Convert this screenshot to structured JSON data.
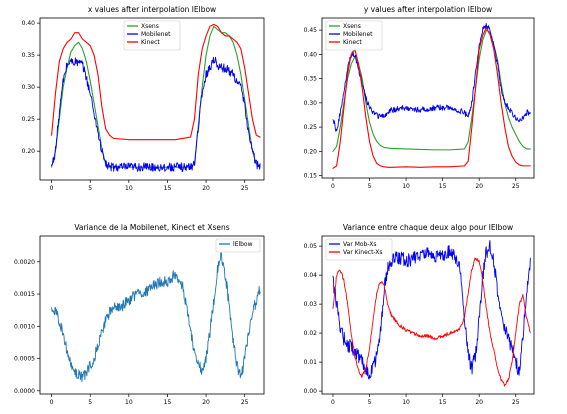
{
  "colors": {
    "green": "#2ca02c",
    "blue": "#0000ff",
    "red": "#ff0000",
    "steel": "#1f77b4"
  },
  "chart_data": [
    {
      "type": "line",
      "title": "x values after interpolation lElbow",
      "xlim": [
        -1.5,
        27.5
      ],
      "ylim": [
        0.155,
        0.408
      ],
      "xticks": [
        0,
        5,
        10,
        15,
        20,
        25
      ],
      "yticks": [
        0.2,
        0.25,
        0.3,
        0.35,
        0.4
      ],
      "ytick_labels": [
        "0.20",
        "0.25",
        "0.30",
        "0.35",
        "0.40"
      ],
      "legend": "top-center",
      "series": [
        {
          "name": "Xsens",
          "color": "#2ca02c",
          "x": [
            0,
            0.5,
            1,
            1.5,
            2,
            2.5,
            3,
            3.5,
            4,
            4.5,
            5,
            5.5,
            6,
            6.5,
            7,
            7.5,
            8,
            10,
            12,
            14,
            16,
            18,
            18.5,
            19,
            19.5,
            20,
            20.5,
            21,
            21.5,
            22,
            22.5,
            23,
            23.5,
            24,
            24.5,
            25,
            25.5,
            26,
            26.5,
            27
          ],
          "y": [
            0.175,
            0.2,
            0.25,
            0.3,
            0.33,
            0.355,
            0.365,
            0.37,
            0.36,
            0.34,
            0.31,
            0.275,
            0.24,
            0.205,
            0.18,
            0.175,
            0.175,
            0.175,
            0.175,
            0.175,
            0.175,
            0.175,
            0.18,
            0.24,
            0.3,
            0.35,
            0.38,
            0.395,
            0.39,
            0.385,
            0.385,
            0.38,
            0.37,
            0.35,
            0.32,
            0.28,
            0.24,
            0.2,
            0.18,
            0.175
          ]
        },
        {
          "name": "Mobilenet",
          "color": "#0000ff",
          "noise": 0.007,
          "x": [
            0,
            0.5,
            1,
            1.5,
            2,
            2.5,
            3,
            3.5,
            4,
            4.5,
            5,
            5.5,
            6,
            6.5,
            7,
            7.5,
            8,
            10,
            12,
            14,
            16,
            18,
            18.5,
            19,
            19.5,
            20,
            20.5,
            21,
            21.5,
            22,
            22.5,
            23,
            23.5,
            24,
            24.5,
            25,
            25.5,
            26,
            26.5,
            27
          ],
          "y": [
            0.175,
            0.2,
            0.26,
            0.31,
            0.335,
            0.34,
            0.34,
            0.338,
            0.335,
            0.315,
            0.29,
            0.26,
            0.23,
            0.2,
            0.18,
            0.175,
            0.175,
            0.175,
            0.175,
            0.175,
            0.175,
            0.175,
            0.18,
            0.24,
            0.29,
            0.32,
            0.33,
            0.345,
            0.335,
            0.33,
            0.33,
            0.325,
            0.32,
            0.31,
            0.3,
            0.27,
            0.23,
            0.2,
            0.18,
            0.175
          ]
        },
        {
          "name": "Kinect",
          "color": "#ff0000",
          "x": [
            0,
            0.5,
            1,
            1.5,
            2,
            2.5,
            3,
            3.5,
            4,
            4.5,
            5,
            5.5,
            6,
            6.5,
            7,
            7.5,
            8,
            10,
            12,
            14,
            16,
            18,
            18.5,
            19,
            19.5,
            20,
            20.5,
            21,
            21.5,
            22,
            22.5,
            23,
            23.5,
            24,
            24.5,
            25,
            25.5,
            26,
            26.5,
            27
          ],
          "y": [
            0.225,
            0.29,
            0.34,
            0.36,
            0.37,
            0.375,
            0.385,
            0.385,
            0.375,
            0.37,
            0.365,
            0.35,
            0.32,
            0.27,
            0.235,
            0.225,
            0.22,
            0.218,
            0.218,
            0.218,
            0.218,
            0.222,
            0.25,
            0.32,
            0.36,
            0.38,
            0.395,
            0.398,
            0.395,
            0.385,
            0.38,
            0.38,
            0.375,
            0.37,
            0.36,
            0.33,
            0.29,
            0.25,
            0.225,
            0.222
          ]
        }
      ]
    },
    {
      "type": "line",
      "title": "y values after interpolation lElbow",
      "xlim": [
        -1.5,
        27.5
      ],
      "ylim": [
        0.145,
        0.475
      ],
      "xticks": [
        0,
        5,
        10,
        15,
        20,
        25
      ],
      "yticks": [
        0.15,
        0.2,
        0.25,
        0.3,
        0.35,
        0.4,
        0.45
      ],
      "ytick_labels": [
        "0.15",
        "0.20",
        "0.25",
        "0.30",
        "0.35",
        "0.40",
        "0.45"
      ],
      "legend": "top-left",
      "series": [
        {
          "name": "Xsens",
          "color": "#2ca02c",
          "x": [
            0,
            0.5,
            1,
            1.5,
            2,
            2.5,
            3,
            3.5,
            4,
            4.5,
            5,
            5.5,
            6,
            6.5,
            7,
            7.5,
            8,
            10,
            12,
            14,
            16,
            18,
            18.5,
            19,
            19.5,
            20,
            20.5,
            21,
            21.5,
            22,
            22.5,
            23,
            23.5,
            24,
            24.5,
            25,
            25.5,
            26,
            26.5,
            27
          ],
          "y": [
            0.2,
            0.21,
            0.25,
            0.3,
            0.35,
            0.38,
            0.395,
            0.38,
            0.35,
            0.3,
            0.26,
            0.235,
            0.22,
            0.212,
            0.208,
            0.207,
            0.206,
            0.205,
            0.204,
            0.203,
            0.203,
            0.205,
            0.22,
            0.27,
            0.33,
            0.39,
            0.43,
            0.45,
            0.445,
            0.42,
            0.39,
            0.34,
            0.3,
            0.27,
            0.25,
            0.235,
            0.22,
            0.21,
            0.205,
            0.205
          ]
        },
        {
          "name": "Mobilenet",
          "color": "#0000ff",
          "noise": 0.006,
          "x": [
            0,
            0.5,
            1,
            1.5,
            2,
            2.5,
            3,
            3.5,
            4,
            4.5,
            5,
            5.5,
            6,
            6.5,
            7,
            7.5,
            8,
            10,
            12,
            14,
            16,
            18,
            18.5,
            19,
            19.5,
            20,
            20.5,
            21,
            21.5,
            22,
            22.5,
            23,
            23.5,
            24,
            24.5,
            25,
            25.5,
            26,
            26.5,
            27
          ],
          "y": [
            0.27,
            0.24,
            0.28,
            0.32,
            0.37,
            0.4,
            0.4,
            0.37,
            0.34,
            0.31,
            0.29,
            0.28,
            0.275,
            0.27,
            0.275,
            0.28,
            0.285,
            0.29,
            0.285,
            0.29,
            0.29,
            0.28,
            0.27,
            0.3,
            0.36,
            0.42,
            0.45,
            0.46,
            0.45,
            0.42,
            0.38,
            0.33,
            0.3,
            0.29,
            0.28,
            0.27,
            0.265,
            0.27,
            0.28,
            0.28
          ]
        },
        {
          "name": "Kinect",
          "color": "#ff0000",
          "x": [
            0,
            0.5,
            1,
            1.5,
            2,
            2.5,
            3,
            3.5,
            4,
            4.5,
            5,
            5.5,
            6,
            6.5,
            7,
            7.5,
            8,
            10,
            12,
            14,
            16,
            18,
            18.5,
            19,
            19.5,
            20,
            20.5,
            21,
            21.5,
            22,
            22.5,
            23,
            23.5,
            24,
            24.5,
            25,
            25.5,
            26,
            26.5,
            27
          ],
          "y": [
            0.165,
            0.17,
            0.22,
            0.29,
            0.36,
            0.4,
            0.41,
            0.38,
            0.33,
            0.27,
            0.22,
            0.19,
            0.175,
            0.17,
            0.168,
            0.167,
            0.167,
            0.168,
            0.167,
            0.168,
            0.168,
            0.17,
            0.18,
            0.25,
            0.33,
            0.41,
            0.44,
            0.455,
            0.44,
            0.41,
            0.36,
            0.3,
            0.25,
            0.21,
            0.19,
            0.178,
            0.172,
            0.17,
            0.17,
            0.17
          ]
        }
      ]
    },
    {
      "type": "line",
      "title": "Variance de la Mobilenet, Kinect et Xsens",
      "xlim": [
        -1.5,
        27.5
      ],
      "ylim": [
        -5e-05,
        0.0024
      ],
      "xticks": [
        0,
        5,
        10,
        15,
        20,
        25
      ],
      "yticks": [
        0,
        0.0005,
        0.001,
        0.0015,
        0.002
      ],
      "ytick_labels": [
        "0.0000",
        "0.0005",
        "0.0010",
        "0.0015",
        "0.0020"
      ],
      "legend": "top-right",
      "series": [
        {
          "name": "lElbow",
          "color": "#1f77b4",
          "noise": 9e-05,
          "x": [
            0,
            0.5,
            1,
            1.5,
            2,
            2.5,
            3,
            3.5,
            4,
            4.5,
            5,
            5.5,
            6,
            6.5,
            7,
            7.5,
            8,
            9,
            10,
            11,
            12,
            13,
            14,
            15,
            16,
            17,
            17.5,
            18,
            18.5,
            19,
            19.5,
            20,
            20.5,
            21,
            21.5,
            22,
            22.5,
            23,
            23.5,
            24,
            24.5,
            25,
            25.5,
            26,
            26.5,
            27
          ],
          "y": [
            0.0013,
            0.0012,
            0.0011,
            0.0009,
            0.0006,
            0.0004,
            0.0003,
            0.00025,
            0.0002,
            0.0003,
            0.0004,
            0.0005,
            0.0007,
            0.0009,
            0.0011,
            0.0012,
            0.0013,
            0.0013,
            0.0014,
            0.0015,
            0.0015,
            0.0016,
            0.0017,
            0.0017,
            0.0018,
            0.0016,
            0.0013,
            0.0009,
            0.0006,
            0.0004,
            0.0003,
            0.0005,
            0.0009,
            0.0014,
            0.0019,
            0.0021,
            0.0018,
            0.0013,
            0.0008,
            0.0004,
            0.0002,
            0.0005,
            0.0009,
            0.0012,
            0.0014,
            0.0016
          ]
        }
      ]
    },
    {
      "type": "line",
      "title": "Variance entre chaque deux algo pour lElbow",
      "xlim": [
        -1.5,
        27.5
      ],
      "ylim": [
        -0.001,
        0.0535
      ],
      "xticks": [
        0,
        5,
        10,
        15,
        20,
        25
      ],
      "yticks": [
        0,
        0.01,
        0.02,
        0.03,
        0.04,
        0.05
      ],
      "ytick_labels": [
        "0.00",
        "0.01",
        "0.02",
        "0.03",
        "0.04",
        "0.05"
      ],
      "legend": "top-left",
      "series": [
        {
          "name": "Var Mob-Xs",
          "color": "#0000ff",
          "noise": 0.0025,
          "x": [
            0,
            0.5,
            1,
            1.5,
            2,
            2.5,
            3,
            3.5,
            4,
            4.5,
            5,
            5.5,
            6,
            6.5,
            7,
            7.5,
            8,
            9,
            10,
            11,
            12,
            13,
            14,
            15,
            16,
            17,
            17.5,
            18,
            18.5,
            19,
            19.5,
            20,
            20.5,
            21,
            21.5,
            22,
            22.5,
            23,
            23.5,
            24,
            24.5,
            25,
            25.5,
            26,
            26.5,
            27
          ],
          "y": [
            0.038,
            0.03,
            0.022,
            0.018,
            0.016,
            0.015,
            0.014,
            0.012,
            0.01,
            0.008,
            0.006,
            0.008,
            0.012,
            0.02,
            0.035,
            0.042,
            0.045,
            0.046,
            0.045,
            0.046,
            0.047,
            0.047,
            0.046,
            0.047,
            0.048,
            0.045,
            0.04,
            0.025,
            0.012,
            0.008,
            0.012,
            0.025,
            0.04,
            0.048,
            0.05,
            0.045,
            0.035,
            0.028,
            0.022,
            0.018,
            0.015,
            0.01,
            0.006,
            0.02,
            0.035,
            0.045
          ]
        },
        {
          "name": "Var Kinect-Xs",
          "color": "#ff0000",
          "noise": 0.0006,
          "x": [
            0,
            0.5,
            1,
            1.5,
            2,
            2.5,
            3,
            3.5,
            4,
            4.5,
            5,
            5.5,
            6,
            6.5,
            7,
            7.5,
            8,
            9,
            10,
            11,
            12,
            13,
            14,
            15,
            16,
            17,
            17.5,
            18,
            18.5,
            19,
            19.5,
            20,
            20.5,
            21,
            21.5,
            22,
            22.5,
            23,
            23.5,
            24,
            24.5,
            25,
            25.5,
            26,
            26.5,
            27
          ],
          "y": [
            0.028,
            0.04,
            0.042,
            0.038,
            0.03,
            0.02,
            0.012,
            0.007,
            0.005,
            0.008,
            0.015,
            0.025,
            0.034,
            0.038,
            0.036,
            0.03,
            0.026,
            0.023,
            0.021,
            0.02,
            0.019,
            0.019,
            0.018,
            0.019,
            0.02,
            0.021,
            0.022,
            0.026,
            0.034,
            0.042,
            0.046,
            0.045,
            0.038,
            0.028,
            0.02,
            0.014,
            0.008,
            0.004,
            0.002,
            0.004,
            0.01,
            0.02,
            0.03,
            0.033,
            0.025,
            0.02
          ]
        }
      ]
    }
  ]
}
